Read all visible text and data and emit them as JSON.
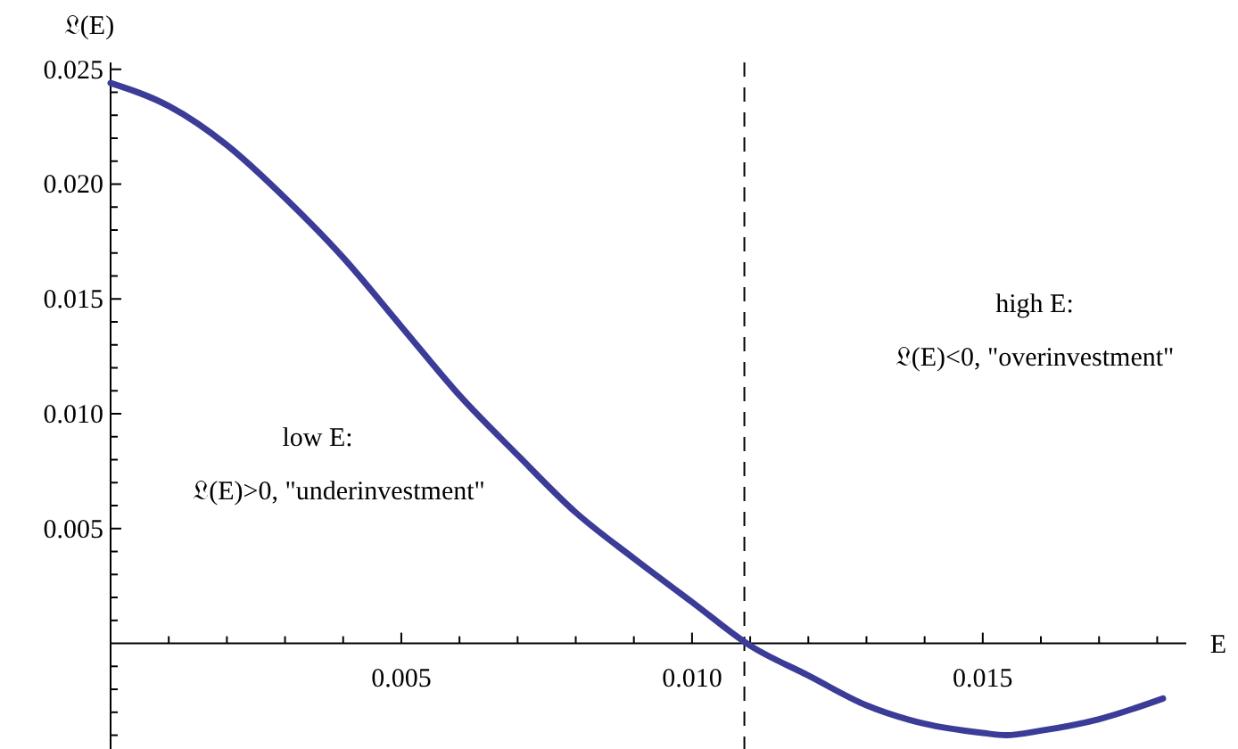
{
  "chart_data": {
    "type": "line",
    "xlabel": "E",
    "ylabel": "𝔏(E)",
    "x": [
      0,
      0.001,
      0.002,
      0.003,
      0.004,
      0.005,
      0.006,
      0.007,
      0.008,
      0.009,
      0.01,
      0.011,
      0.012,
      0.013,
      0.014,
      0.015,
      0.0154,
      0.016,
      0.017,
      0.0181
    ],
    "series": [
      {
        "color": "#3b3b98",
        "values": [
          0.0244,
          0.0234,
          0.0217,
          0.0194,
          0.0168,
          0.0138,
          0.0108,
          0.0082,
          0.0057,
          0.0037,
          0.0018,
          -0.0001,
          -0.0014,
          -0.0027,
          -0.0035,
          -0.0039,
          -0.004,
          -0.0038,
          -0.0033,
          -0.0024
        ]
      }
    ],
    "xlim": [
      0,
      0.0185
    ],
    "ylim": [
      -0.0046,
      0.0253
    ],
    "xticks": [
      {
        "value": 0.001,
        "label": null
      },
      {
        "value": 0.002,
        "label": null
      },
      {
        "value": 0.003,
        "label": null
      },
      {
        "value": 0.004,
        "label": null
      },
      {
        "value": 0.005,
        "label": "0.005"
      },
      {
        "value": 0.006,
        "label": null
      },
      {
        "value": 0.007,
        "label": null
      },
      {
        "value": 0.008,
        "label": null
      },
      {
        "value": 0.009,
        "label": null
      },
      {
        "value": 0.01,
        "label": "0.010"
      },
      {
        "value": 0.011,
        "label": null
      },
      {
        "value": 0.012,
        "label": null
      },
      {
        "value": 0.013,
        "label": null
      },
      {
        "value": 0.014,
        "label": null
      },
      {
        "value": 0.015,
        "label": "0.015"
      },
      {
        "value": 0.016,
        "label": null
      },
      {
        "value": 0.017,
        "label": null
      },
      {
        "value": 0.018,
        "label": null
      }
    ],
    "yticks": [
      {
        "value": -0.004,
        "label": null
      },
      {
        "value": -0.003,
        "label": null
      },
      {
        "value": -0.002,
        "label": null
      },
      {
        "value": -0.001,
        "label": null
      },
      {
        "value": 0.001,
        "label": null
      },
      {
        "value": 0.002,
        "label": null
      },
      {
        "value": 0.003,
        "label": null
      },
      {
        "value": 0.004,
        "label": null
      },
      {
        "value": 0.005,
        "label": "0.005"
      },
      {
        "value": 0.006,
        "label": null
      },
      {
        "value": 0.007,
        "label": null
      },
      {
        "value": 0.008,
        "label": null
      },
      {
        "value": 0.009,
        "label": null
      },
      {
        "value": 0.01,
        "label": "0.010"
      },
      {
        "value": 0.011,
        "label": null
      },
      {
        "value": 0.012,
        "label": null
      },
      {
        "value": 0.013,
        "label": null
      },
      {
        "value": 0.014,
        "label": null
      },
      {
        "value": 0.015,
        "label": "0.015"
      },
      {
        "value": 0.016,
        "label": null
      },
      {
        "value": 0.017,
        "label": null
      },
      {
        "value": 0.018,
        "label": null
      },
      {
        "value": 0.019,
        "label": null
      },
      {
        "value": 0.02,
        "label": "0.020"
      },
      {
        "value": 0.021,
        "label": null
      },
      {
        "value": 0.022,
        "label": null
      },
      {
        "value": 0.023,
        "label": null
      },
      {
        "value": 0.024,
        "label": null
      },
      {
        "value": 0.025,
        "label": "0.025"
      }
    ],
    "ref_lines": [
      {
        "axis": "x",
        "value": 0.0109,
        "line_style": "dashed",
        "color": "#000000"
      }
    ],
    "annotations": [
      "low E:",
      "𝔏(E)>0,  \"underinvestment\"",
      "high E:",
      "𝔏(E)<0,  \"overinvestment\""
    ],
    "grid": false,
    "line_style": "solid"
  }
}
